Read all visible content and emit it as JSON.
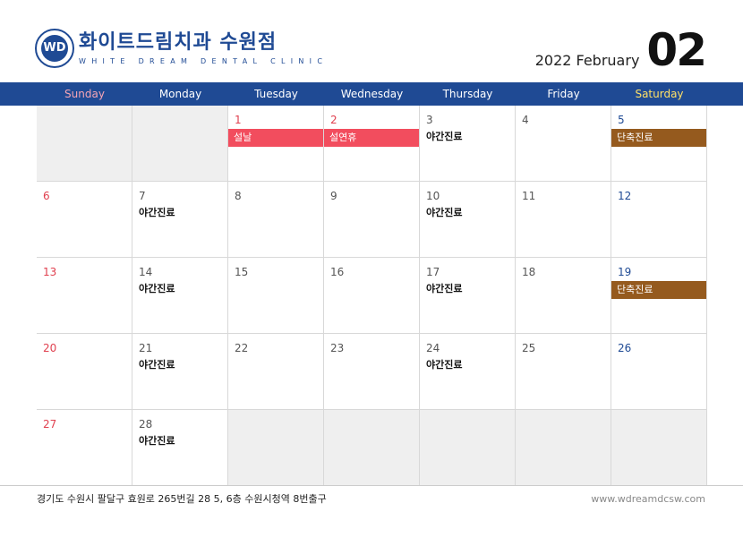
{
  "header": {
    "brand_ko": "화이트드림치과 수원점",
    "brand_en": "WHITE DREAM DENTAL CLINIC",
    "logo_text": "WD",
    "year_month": "2022 February",
    "month_num": "02"
  },
  "weekdays": [
    "Sunday",
    "Monday",
    "Tuesday",
    "Wednesday",
    "Thursday",
    "Friday",
    "Saturday"
  ],
  "colors": {
    "primary": "#1f4a94",
    "holiday": "#f24d5e",
    "short_day": "#955a1e",
    "sunday_header": "#f5a5b5",
    "saturday_header": "#ffe066"
  },
  "weeks": [
    [
      {
        "d": ""
      },
      {
        "d": ""
      },
      {
        "d": "1",
        "type": "hol",
        "bar": "설날",
        "barColor": "red"
      },
      {
        "d": "2",
        "type": "hol",
        "bar": "설연휴",
        "barColor": "red"
      },
      {
        "d": "3",
        "ev": "야간진료"
      },
      {
        "d": "4"
      },
      {
        "d": "5",
        "type": "sat",
        "bar": "단축진료",
        "barColor": "brown"
      }
    ],
    [
      {
        "d": "6",
        "type": "sun"
      },
      {
        "d": "7",
        "ev": "야간진료"
      },
      {
        "d": "8"
      },
      {
        "d": "9"
      },
      {
        "d": "10",
        "ev": "야간진료"
      },
      {
        "d": "11"
      },
      {
        "d": "12",
        "type": "sat"
      }
    ],
    [
      {
        "d": "13",
        "type": "sun"
      },
      {
        "d": "14",
        "ev": "야간진료"
      },
      {
        "d": "15"
      },
      {
        "d": "16"
      },
      {
        "d": "17",
        "ev": "야간진료"
      },
      {
        "d": "18"
      },
      {
        "d": "19",
        "type": "sat",
        "bar": "단축진료",
        "barColor": "brown"
      }
    ],
    [
      {
        "d": "20",
        "type": "sun"
      },
      {
        "d": "21",
        "ev": "야간진료"
      },
      {
        "d": "22"
      },
      {
        "d": "23"
      },
      {
        "d": "24",
        "ev": "야간진료"
      },
      {
        "d": "25"
      },
      {
        "d": "26",
        "type": "sat"
      }
    ],
    [
      {
        "d": "27",
        "type": "sun"
      },
      {
        "d": "28",
        "ev": "야간진료"
      },
      {
        "d": ""
      },
      {
        "d": ""
      },
      {
        "d": ""
      },
      {
        "d": ""
      },
      {
        "d": ""
      }
    ]
  ],
  "footer": {
    "address": "경기도 수원시 팔달구 효원로 265번길 28 5, 6층 수원시청역 8번출구",
    "url": "www.wdreamdcsw.com"
  }
}
